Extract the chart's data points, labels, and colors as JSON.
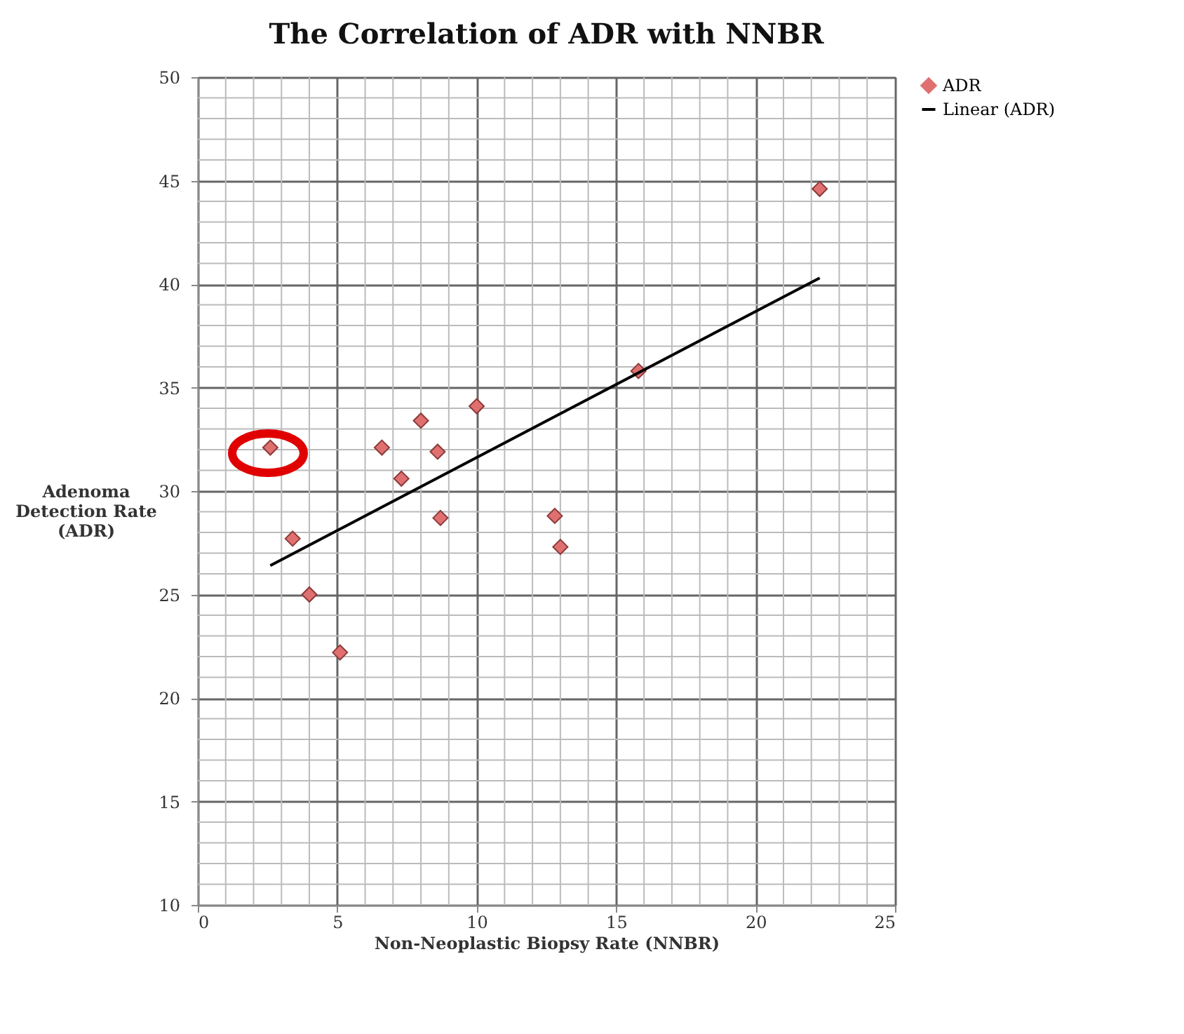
{
  "chart_data": {
    "type": "scatter",
    "title": "The Correlation of ADR with NNBR",
    "xlabel": "Non-Neoplastic Biopsy Rate (NNBR)",
    "ylabel": "Adenoma Detection Rate (ADR)",
    "xlim": [
      0,
      25
    ],
    "xticks": [
      0,
      5,
      10,
      15,
      20,
      25
    ],
    "ylim": [
      10,
      50
    ],
    "yticks": [
      10,
      15,
      20,
      25,
      30,
      35,
      40,
      45,
      50
    ],
    "grid": true,
    "legend": "right",
    "series": [
      {
        "name": "ADR",
        "marker": "diamond",
        "color": "#e07070",
        "x": [
          2.6,
          3.4,
          4.0,
          5.1,
          6.6,
          7.3,
          8.0,
          8.6,
          8.7,
          10.0,
          12.8,
          13.0,
          15.8,
          22.3
        ],
        "values": [
          32.1,
          27.7,
          25.0,
          22.2,
          32.1,
          30.6,
          33.4,
          31.9,
          28.7,
          34.1,
          28.8,
          27.3,
          35.8,
          44.6
        ]
      },
      {
        "name": "Linear (ADR)",
        "type": "line",
        "line_style": "solid",
        "color": "#000000",
        "x": [
          2.6,
          22.3
        ],
        "values": [
          26.4,
          40.3
        ]
      }
    ]
  }
}
